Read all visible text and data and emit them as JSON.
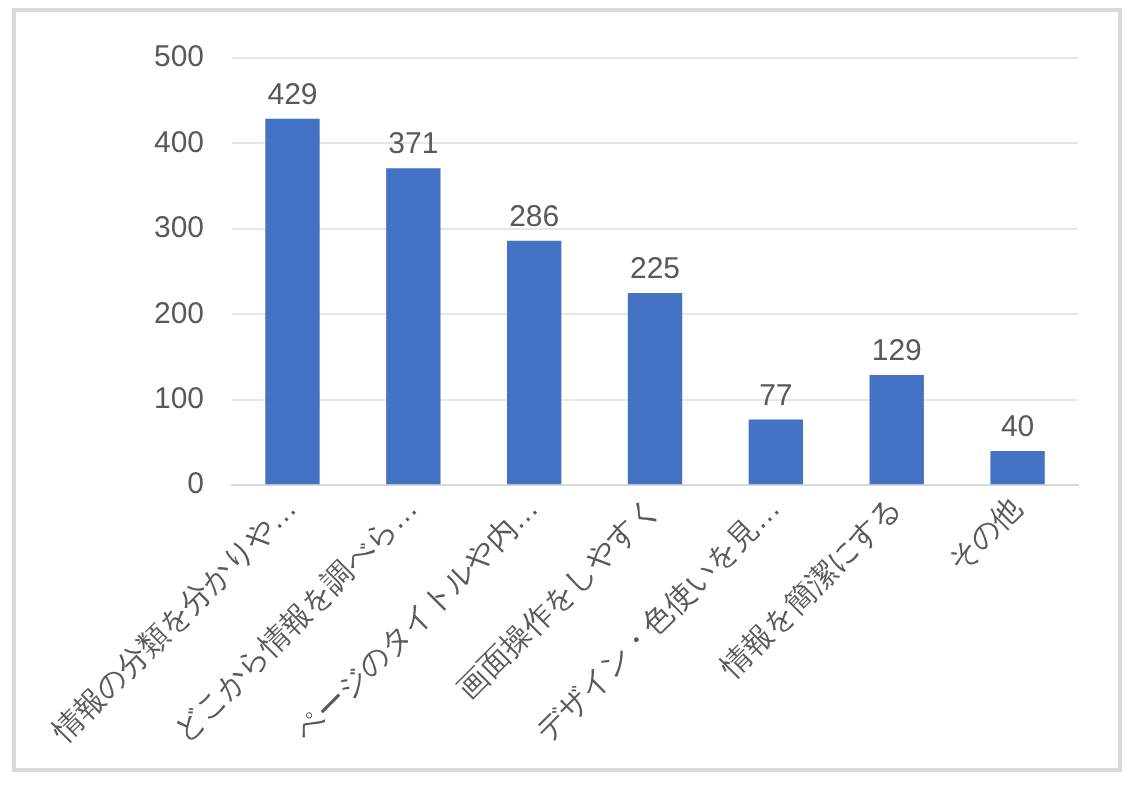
{
  "chart_data": {
    "type": "bar",
    "categories": [
      "情報の分類を分かりや…",
      "どこから情報を調べら…",
      "ページのタイトルや内…",
      "画面操作をしやすく",
      "デザイン・色使いを見…",
      "情報を簡潔にする",
      "その他"
    ],
    "values": [
      429,
      371,
      286,
      225,
      77,
      129,
      40
    ],
    "color": "#4472c4",
    "ylim": [
      0,
      500
    ],
    "yticks": [
      0,
      100,
      200,
      300,
      400,
      500
    ],
    "grid": "y",
    "data_labels": true,
    "legend": false
  }
}
